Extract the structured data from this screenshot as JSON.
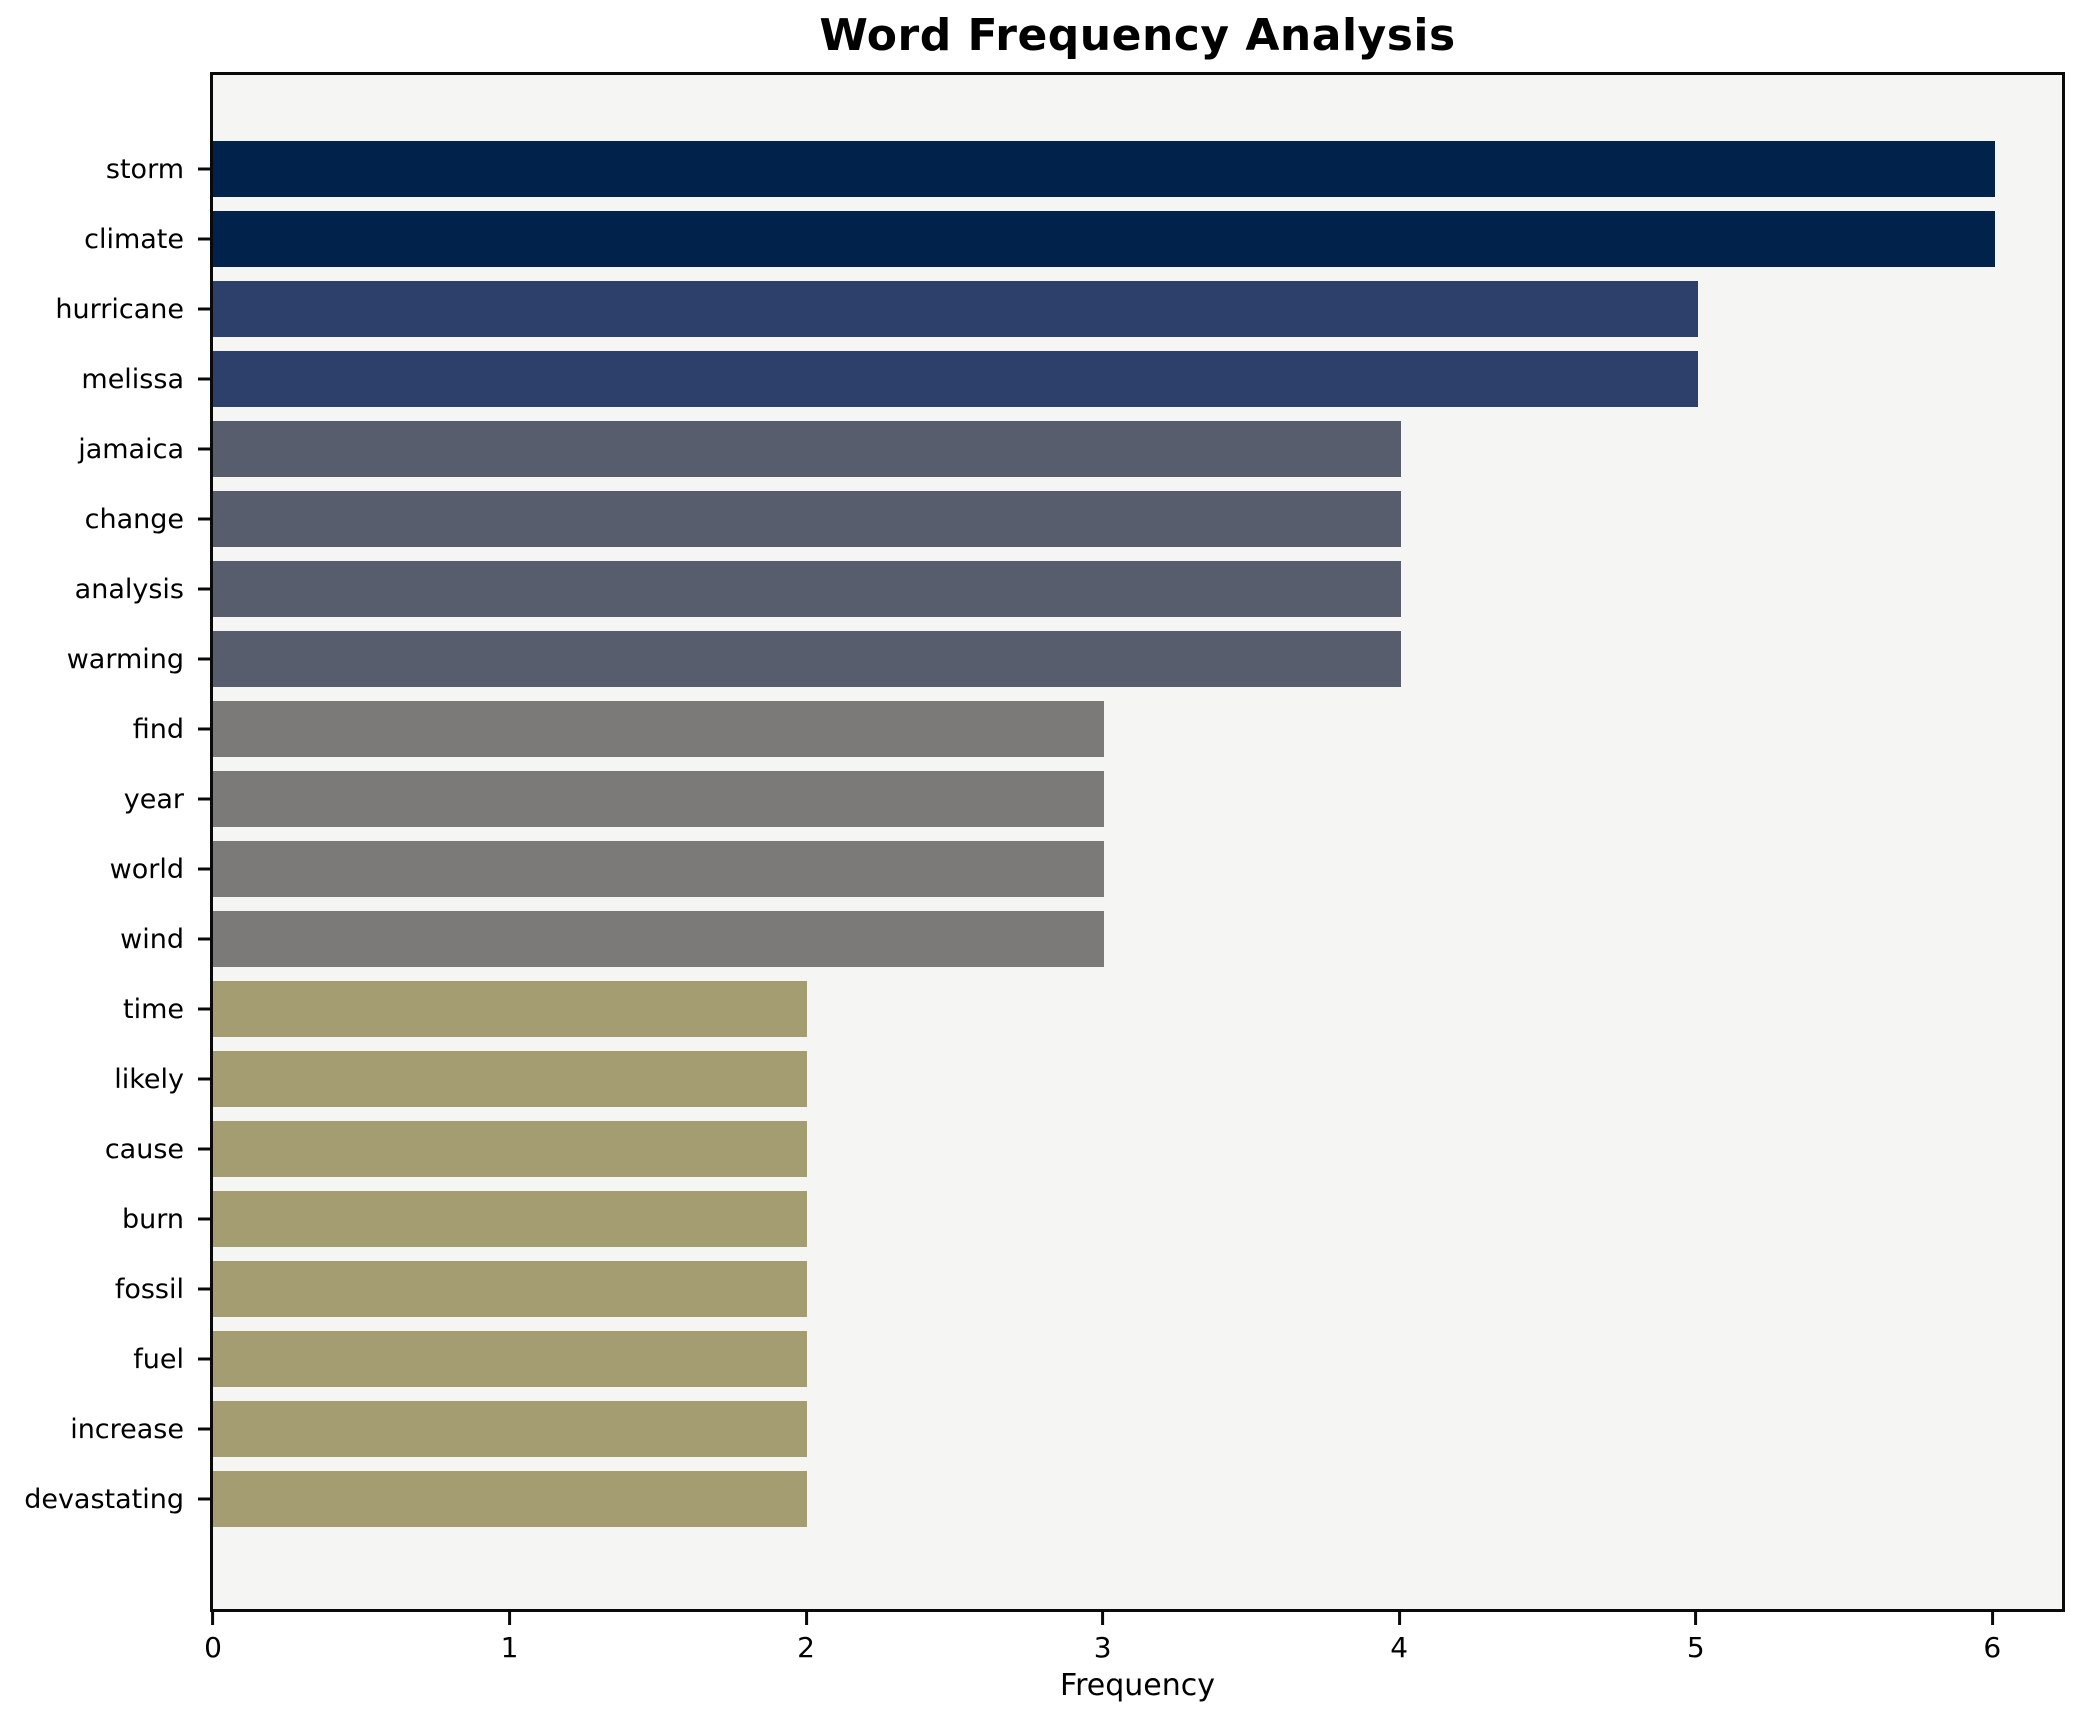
{
  "figure": {
    "title": "Word Frequency Analysis",
    "xlabel": "Frequency"
  },
  "chart_data": {
    "type": "bar",
    "orientation": "horizontal",
    "title": "Word Frequency Analysis",
    "xlabel": "Frequency",
    "ylabel": "",
    "categories": [
      "storm",
      "climate",
      "hurricane",
      "melissa",
      "jamaica",
      "change",
      "analysis",
      "warming",
      "find",
      "year",
      "world",
      "wind",
      "time",
      "likely",
      "cause",
      "burn",
      "fossil",
      "fuel",
      "increase",
      "devastating"
    ],
    "values": [
      6,
      6,
      5,
      5,
      4,
      4,
      4,
      4,
      3,
      3,
      3,
      3,
      2,
      2,
      2,
      2,
      2,
      2,
      2,
      2
    ],
    "bar_colors": [
      "#01224a",
      "#01224a",
      "#2d3f6b",
      "#2d3f6b",
      "#575d6d",
      "#575d6d",
      "#575d6d",
      "#575d6d",
      "#7b7a78",
      "#7b7a78",
      "#7b7a78",
      "#7b7a78",
      "#a59d72",
      "#a59d72",
      "#a59d72",
      "#a59d72",
      "#a59d72",
      "#a59d72",
      "#a59d72",
      "#a59d72"
    ],
    "xlim": [
      0,
      6.235
    ],
    "xticks": [
      0,
      1,
      2,
      3,
      4,
      5,
      6
    ],
    "grid": false,
    "legend": null,
    "plot_background": "#f5f5f4",
    "figure_background": "#ffffff",
    "spine_color": "#0a0a0a"
  }
}
